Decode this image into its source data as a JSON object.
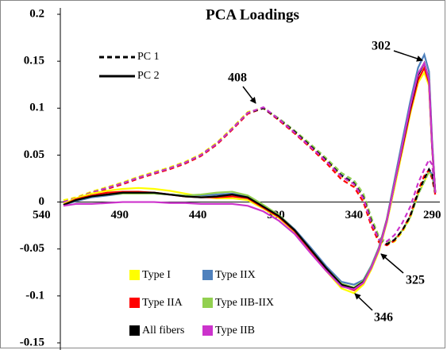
{
  "chart_data": {
    "type": "line",
    "title": "PCA Loadings",
    "x": [
      526,
      518,
      508,
      498,
      488,
      478,
      468,
      458,
      448,
      438,
      428,
      418,
      408,
      398,
      388,
      378,
      368,
      358,
      348,
      340,
      334,
      329,
      324,
      319,
      314,
      309,
      304,
      299,
      295,
      292,
      290,
      288
    ],
    "xlim": [
      528,
      282
    ],
    "xticks": [
      540,
      490,
      440,
      390,
      340,
      290
    ],
    "ylim": [
      -0.15,
      0.2
    ],
    "yticks": [
      0.2,
      0.15,
      0.1,
      0.05,
      0,
      -0.05,
      -0.1,
      -0.15
    ],
    "line_styles": [
      {
        "name": "PC 1",
        "dashed": true
      },
      {
        "name": "PC 2",
        "dashed": false
      }
    ],
    "series": [
      {
        "name": "Type I",
        "color": "#ffff00",
        "values": [
          [
            0.002,
            0.005,
            0.011,
            0.016,
            0.021,
            0.027,
            0.032,
            0.037,
            0.043,
            0.051,
            0.063,
            0.079,
            0.096,
            0.1,
            0.088,
            0.074,
            0.059,
            0.044,
            0.027,
            0.019,
            0.004,
            -0.021,
            -0.041,
            -0.046,
            -0.042,
            -0.032,
            -0.017,
            0.008,
            0.022,
            0.032,
            0.028,
            0.01
          ],
          [
            -0.002,
            0.004,
            0.009,
            0.012,
            0.014,
            0.015,
            0.014,
            0.012,
            0.009,
            0.006,
            0.004,
            0.004,
            0.002,
            -0.007,
            -0.017,
            -0.032,
            -0.052,
            -0.073,
            -0.092,
            -0.097,
            -0.088,
            -0.072,
            -0.052,
            -0.022,
            0.016,
            0.055,
            0.094,
            0.127,
            0.138,
            0.124,
            0.058,
            0.01
          ]
        ]
      },
      {
        "name": "Type IIX",
        "color": "#4f81bd",
        "values": [
          [
            0.0,
            0.004,
            0.01,
            0.015,
            0.02,
            0.026,
            0.031,
            0.036,
            0.042,
            0.05,
            0.062,
            0.078,
            0.095,
            0.1,
            0.089,
            0.076,
            0.061,
            0.046,
            0.03,
            0.022,
            0.008,
            -0.017,
            -0.038,
            -0.044,
            -0.04,
            -0.03,
            -0.016,
            0.008,
            0.022,
            0.033,
            0.03,
            0.01
          ],
          [
            -0.003,
            0.001,
            0.005,
            0.007,
            0.009,
            0.009,
            0.009,
            0.008,
            0.007,
            0.007,
            0.008,
            0.009,
            0.006,
            -0.004,
            -0.014,
            -0.029,
            -0.048,
            -0.068,
            -0.085,
            -0.088,
            -0.083,
            -0.068,
            -0.048,
            -0.018,
            0.024,
            0.066,
            0.107,
            0.143,
            0.157,
            0.139,
            0.065,
            0.01
          ]
        ]
      },
      {
        "name": "Type IIA",
        "color": "#ff0000",
        "values": [
          [
            0.0,
            0.003,
            0.009,
            0.014,
            0.019,
            0.025,
            0.03,
            0.035,
            0.041,
            0.049,
            0.061,
            0.077,
            0.094,
            0.1,
            0.087,
            0.073,
            0.058,
            0.042,
            0.024,
            0.016,
            0.0,
            -0.025,
            -0.043,
            -0.046,
            -0.041,
            -0.03,
            -0.014,
            0.012,
            0.028,
            0.034,
            0.025,
            0.008
          ],
          [
            -0.003,
            0.003,
            0.007,
            0.01,
            0.011,
            0.011,
            0.01,
            0.008,
            0.006,
            0.005,
            0.005,
            0.006,
            0.004,
            -0.006,
            -0.016,
            -0.031,
            -0.051,
            -0.071,
            -0.089,
            -0.094,
            -0.086,
            -0.07,
            -0.049,
            -0.019,
            0.02,
            0.058,
            0.097,
            0.13,
            0.143,
            0.127,
            0.058,
            0.01
          ]
        ]
      },
      {
        "name": "Type IIB-IIX",
        "color": "#92d050",
        "values": [
          [
            0.0,
            0.004,
            0.01,
            0.015,
            0.02,
            0.026,
            0.031,
            0.036,
            0.042,
            0.05,
            0.062,
            0.078,
            0.095,
            0.1,
            0.089,
            0.076,
            0.062,
            0.047,
            0.031,
            0.023,
            0.009,
            -0.016,
            -0.037,
            -0.043,
            -0.04,
            -0.03,
            -0.016,
            0.008,
            0.022,
            0.032,
            0.028,
            0.01
          ],
          [
            -0.003,
            0.002,
            0.006,
            0.008,
            0.009,
            0.009,
            0.009,
            0.008,
            0.007,
            0.008,
            0.01,
            0.011,
            0.007,
            -0.003,
            -0.014,
            -0.03,
            -0.05,
            -0.07,
            -0.087,
            -0.091,
            -0.084,
            -0.069,
            -0.049,
            -0.019,
            0.021,
            0.061,
            0.101,
            0.136,
            0.148,
            0.131,
            0.06,
            0.01
          ]
        ]
      },
      {
        "name": "All fibers",
        "color": "#000000",
        "values": [
          [
            0.0,
            0.004,
            0.01,
            0.015,
            0.02,
            0.026,
            0.031,
            0.036,
            0.042,
            0.05,
            0.062,
            0.078,
            0.095,
            0.1,
            0.088,
            0.075,
            0.06,
            0.045,
            0.028,
            0.02,
            0.005,
            -0.02,
            -0.04,
            -0.045,
            -0.04,
            -0.03,
            -0.015,
            0.01,
            0.025,
            0.035,
            0.03,
            0.01
          ],
          [
            -0.003,
            0.002,
            0.006,
            0.008,
            0.01,
            0.01,
            0.01,
            0.008,
            0.006,
            0.005,
            0.006,
            0.008,
            0.005,
            -0.005,
            -0.015,
            -0.03,
            -0.05,
            -0.07,
            -0.088,
            -0.092,
            -0.085,
            -0.07,
            -0.05,
            -0.02,
            0.02,
            0.06,
            0.1,
            0.135,
            0.148,
            0.13,
            0.06,
            0.01
          ]
        ]
      },
      {
        "name": "Type IIB",
        "color": "#cc33cc",
        "values": [
          [
            0.0,
            0.004,
            0.01,
            0.015,
            0.02,
            0.026,
            0.031,
            0.036,
            0.042,
            0.05,
            0.062,
            0.078,
            0.095,
            0.101,
            0.088,
            0.074,
            0.059,
            0.044,
            0.027,
            0.019,
            0.004,
            -0.022,
            -0.04,
            -0.042,
            -0.035,
            -0.022,
            -0.005,
            0.02,
            0.035,
            0.045,
            0.04,
            0.012
          ],
          [
            -0.004,
            -0.002,
            -0.002,
            -0.001,
            0.0,
            0.0,
            0.0,
            -0.001,
            -0.001,
            -0.002,
            -0.002,
            -0.002,
            -0.004,
            -0.01,
            -0.02,
            -0.034,
            -0.054,
            -0.073,
            -0.09,
            -0.093,
            -0.086,
            -0.07,
            -0.05,
            -0.02,
            0.02,
            0.061,
            0.102,
            0.137,
            0.148,
            0.13,
            0.06,
            0.01
          ]
        ]
      }
    ],
    "annotations": [
      {
        "text": "408"
      },
      {
        "text": "302"
      },
      {
        "text": "325"
      },
      {
        "text": "346"
      }
    ]
  }
}
